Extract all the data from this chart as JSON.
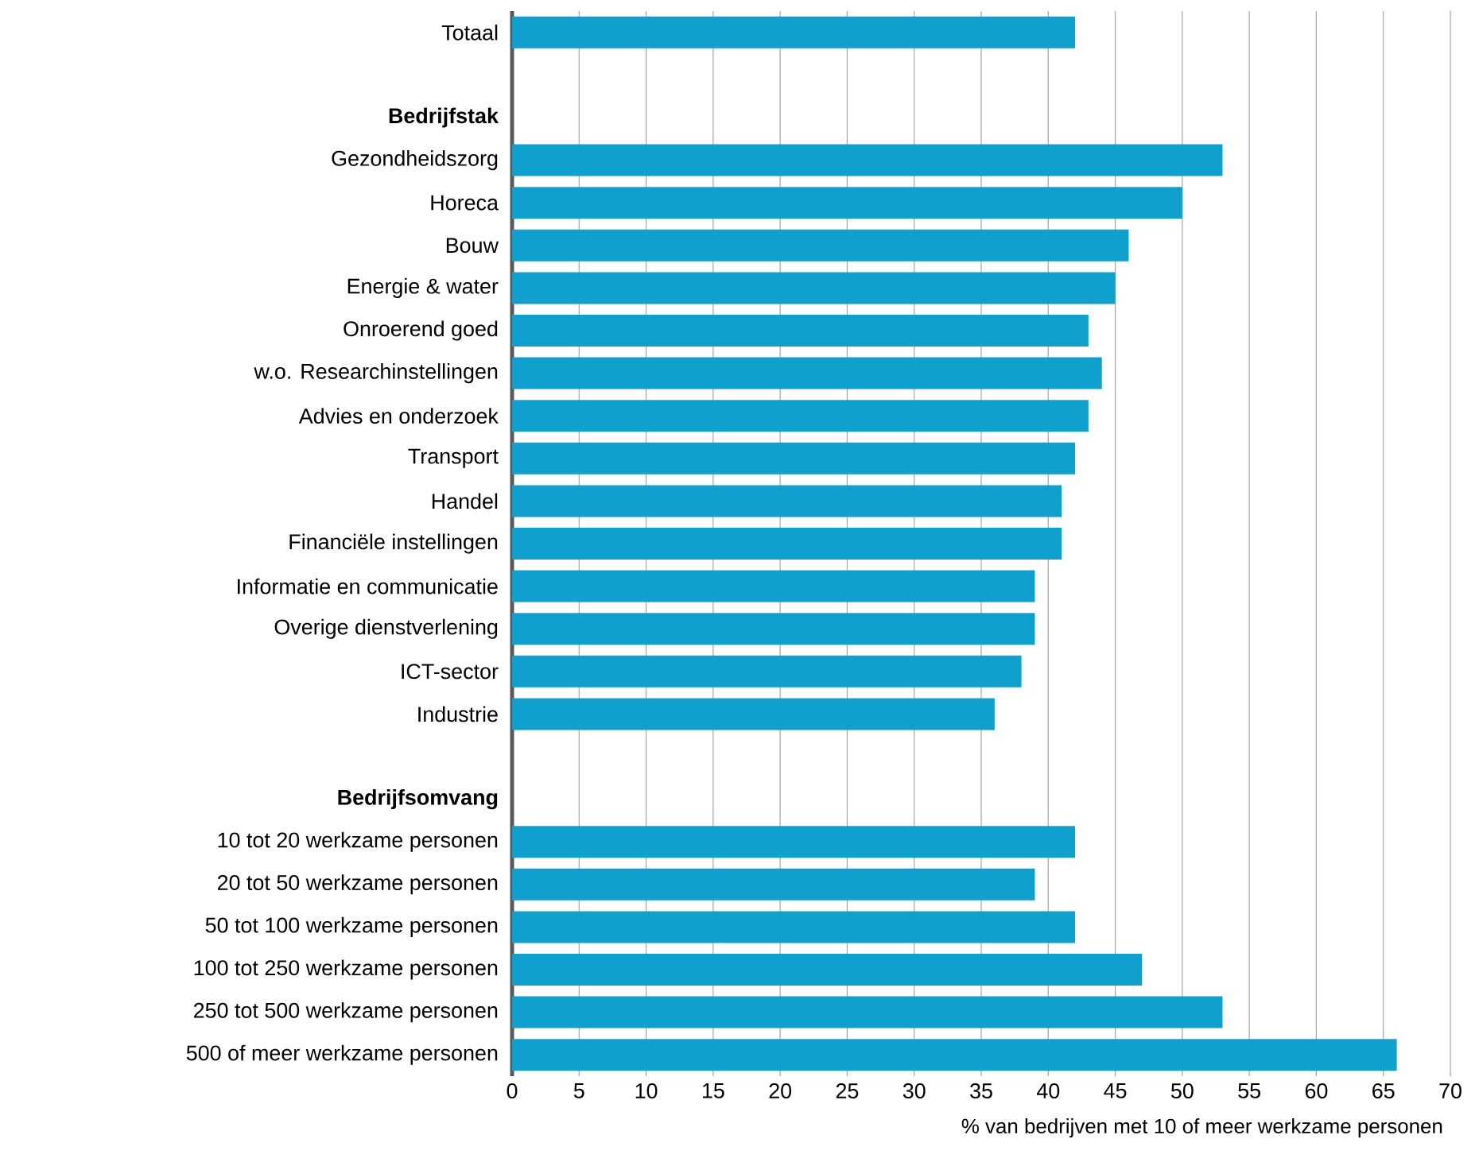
{
  "chart_data": {
    "type": "bar",
    "orientation": "horizontal",
    "xlabel": "% van bedrijven met 10 of meer werkzame personen",
    "categories": [
      "Totaal",
      null,
      "Bedrijfstak",
      "Gezondheidszorg",
      "Horeca",
      "Bouw",
      "Energie & water",
      "Onroerend goed",
      "w.o. Researchinstellingen",
      "Advies en onderzoek",
      "Transport",
      "Handel",
      "Financiële instellingen",
      "Informatie en communicatie",
      "Overige dienstverlening",
      "ICT-sector",
      "Industrie",
      null,
      "Bedrijfsomvang",
      "10 tot 20 werkzame personen",
      "20 tot 50 werkzame personen",
      "50 tot 100 werkzame personen",
      "100 tot 250 werkzame personen",
      "250 tot 500 werkzame personen",
      "500 of meer werkzame personen"
    ],
    "values": [
      42,
      null,
      null,
      53,
      50,
      46,
      45,
      43,
      44,
      43,
      42,
      41,
      41,
      39,
      39,
      38,
      36,
      null,
      null,
      42,
      39,
      42,
      47,
      53,
      66
    ],
    "color": "#0fa0ce",
    "xlim": [
      0,
      70
    ],
    "xticks": [
      0,
      5,
      10,
      15,
      20,
      25,
      30,
      35,
      40,
      45,
      50,
      55,
      60,
      65,
      70
    ],
    "grid": "x"
  }
}
